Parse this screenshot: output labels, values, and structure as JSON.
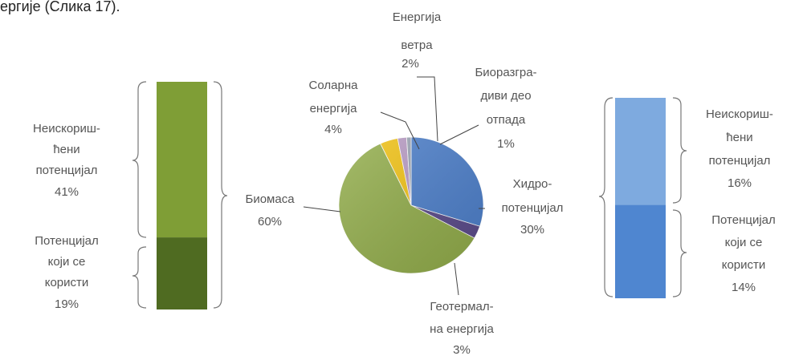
{
  "intro_text": "ергије (Слика 17).",
  "chart_data": [
    {
      "type": "bar",
      "categories": [
        "Потенцијал који се користи",
        "Неискоришћени потенцијал"
      ],
      "stacked": true,
      "values": [
        19,
        41
      ],
      "labels": [
        [
          "Потенцијал",
          "који се",
          "користи",
          "19%"
        ],
        [
          "Неискориш-",
          "ћени",
          "потенцијал",
          "41%"
        ]
      ],
      "colors": [
        "#4f6b21",
        "#7f9e36"
      ]
    },
    {
      "type": "pie",
      "slices": [
        {
          "label": [
            "Хидро-",
            "потенцијал",
            "30%"
          ],
          "value": 30,
          "color": "#4c7fcb"
        },
        {
          "label": [
            "Геотермал-",
            "на енергија",
            "3%"
          ],
          "value": 3,
          "color": "#5a4a8a"
        },
        {
          "label": [
            "Биомаса",
            "60%"
          ],
          "value": 60,
          "color": "#92ad4a"
        },
        {
          "label": [
            "Соларна",
            "енергија",
            "4%"
          ],
          "value": 4,
          "color": "#f2c314"
        },
        {
          "label": [
            "Енергија",
            "ветра",
            "2%"
          ],
          "value": 2,
          "color": "#b89bc4"
        },
        {
          "label": [
            "Биоразгра-",
            "диви део",
            "отпада",
            "1%"
          ],
          "value": 1,
          "color": "#9aa4b3"
        }
      ]
    },
    {
      "type": "bar",
      "categories": [
        "Потенцијал који се користи",
        "Неискоришћени потенцијал"
      ],
      "stacked": true,
      "values": [
        14,
        16
      ],
      "labels": [
        [
          "Потенцијал",
          "који се",
          "користи",
          "14%"
        ],
        [
          "Неискориш-",
          "ћени",
          "потенцијал",
          "16%"
        ]
      ],
      "colors": [
        "#4f86d0",
        "#7eaadf"
      ]
    }
  ]
}
